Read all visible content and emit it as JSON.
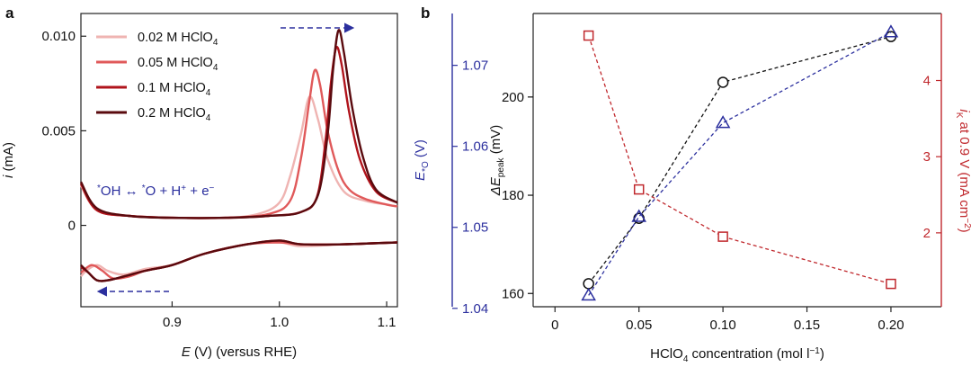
{
  "panels": [
    "a",
    "b"
  ],
  "chart_data": [
    {
      "type": "line",
      "panel": "a",
      "xlabel_italic": "E",
      "xlabel_rest": " (V) (versus RHE)",
      "ylabel_italic": "i",
      "ylabel_rest": " (mA)",
      "xlim": [
        0.815,
        1.11
      ],
      "ylim": [
        -0.0043,
        0.0112
      ],
      "xticks": [
        0.9,
        1.0,
        1.1
      ],
      "xtick_labels": [
        "0.9",
        "1.0",
        "1.1"
      ],
      "yticks": [
        0,
        0.005,
        0.01
      ],
      "ytick_labels": [
        "0",
        "0.005",
        "0.010"
      ],
      "annotation": "*OH ↔ *O + H+ + e−",
      "annotation_parts": {
        "p1": "*",
        "p2": "OH ↔ ",
        "p3": "*",
        "p4": "O + H",
        "p5": "+",
        "p6": " + e",
        "p7": "−"
      },
      "arrow_anodic": "right",
      "arrow_cathodic": "left",
      "grid": false,
      "legend_position": "top-left",
      "series": [
        {
          "name": "0.02 M HClO4",
          "name_main": "0.02 M HClO",
          "name_sub": "4",
          "color": "#efb4b2",
          "anodic_x": [
            0.815,
            0.83,
            0.86,
            0.9,
            0.95,
            0.98,
            1.0,
            1.01,
            1.02,
            1.028,
            1.036,
            1.045,
            1.06,
            1.08,
            1.1,
            1.11
          ],
          "anodic_y": [
            0.0021,
            0.0008,
            0.0005,
            0.0004,
            0.0004,
            0.0006,
            0.0012,
            0.0026,
            0.0048,
            0.0068,
            0.0056,
            0.0035,
            0.0018,
            0.0013,
            0.0011,
            0.001
          ],
          "cathodic_x": [
            1.11,
            1.06,
            1.02,
            1.0,
            0.97,
            0.93,
            0.9,
            0.875,
            0.855,
            0.84,
            0.83,
            0.82,
            0.815
          ],
          "cathodic_y": [
            -0.0009,
            -0.001,
            -0.0011,
            -0.0009,
            -0.001,
            -0.0015,
            -0.0021,
            -0.0023,
            -0.0026,
            -0.0024,
            -0.0021,
            -0.0024,
            -0.0027
          ]
        },
        {
          "name": "0.05 M HClO4",
          "name_main": "0.05 M HClO",
          "name_sub": "4",
          "color": "#e0595a",
          "anodic_x": [
            0.815,
            0.83,
            0.86,
            0.9,
            0.95,
            0.99,
            1.01,
            1.02,
            1.028,
            1.033,
            1.038,
            1.045,
            1.055,
            1.065,
            1.08,
            1.1,
            1.11
          ],
          "anodic_y": [
            0.0022,
            0.0008,
            0.0005,
            0.0004,
            0.0004,
            0.0006,
            0.0013,
            0.0035,
            0.0066,
            0.0082,
            0.0074,
            0.005,
            0.0029,
            0.0019,
            0.0014,
            0.0011,
            0.001
          ],
          "cathodic_x": [
            1.11,
            1.06,
            1.02,
            1.0,
            0.97,
            0.93,
            0.9,
            0.875,
            0.86,
            0.845,
            0.835,
            0.825,
            0.815
          ],
          "cathodic_y": [
            -0.0009,
            -0.001,
            -0.001,
            -0.0009,
            -0.001,
            -0.0015,
            -0.0021,
            -0.0024,
            -0.0027,
            -0.0028,
            -0.0024,
            -0.0021,
            -0.0025
          ]
        },
        {
          "name": "0.1 M HClO4",
          "name_main": "0.1 M HClO",
          "name_sub": "4",
          "color": "#b0141c",
          "anodic_x": [
            0.815,
            0.83,
            0.86,
            0.9,
            0.95,
            0.99,
            1.02,
            1.035,
            1.043,
            1.048,
            1.053,
            1.058,
            1.065,
            1.075,
            1.09,
            1.11
          ],
          "anodic_y": [
            0.0022,
            0.0008,
            0.0005,
            0.0004,
            0.0004,
            0.0005,
            0.0007,
            0.0015,
            0.0045,
            0.0075,
            0.0094,
            0.0085,
            0.006,
            0.0035,
            0.0018,
            0.0012
          ],
          "cathodic_x": [
            1.11,
            1.06,
            1.02,
            1.0,
            0.97,
            0.93,
            0.9,
            0.875,
            0.855,
            0.84,
            0.83,
            0.822,
            0.815
          ],
          "cathodic_y": [
            -0.0009,
            -0.001,
            -0.001,
            -0.0008,
            -0.001,
            -0.0015,
            -0.0021,
            -0.0024,
            -0.0027,
            -0.0029,
            -0.0029,
            -0.0025,
            -0.0022
          ]
        },
        {
          "name": "0.2 M HClO4",
          "name_main": "0.2 M HClO",
          "name_sub": "4",
          "color": "#5a0a0e",
          "anodic_x": [
            0.815,
            0.83,
            0.86,
            0.9,
            0.95,
            0.99,
            1.02,
            1.036,
            1.045,
            1.05,
            1.055,
            1.06,
            1.068,
            1.078,
            1.09,
            1.11
          ],
          "anodic_y": [
            0.0023,
            0.0009,
            0.0005,
            0.0004,
            0.0004,
            0.0005,
            0.0007,
            0.0016,
            0.0048,
            0.0082,
            0.0103,
            0.0092,
            0.0062,
            0.0036,
            0.0019,
            0.0012
          ],
          "cathodic_x": [
            1.11,
            1.06,
            1.02,
            1.0,
            0.97,
            0.93,
            0.9,
            0.875,
            0.855,
            0.84,
            0.83,
            0.822,
            0.815
          ],
          "cathodic_y": [
            -0.0009,
            -0.001,
            -0.001,
            -0.0008,
            -0.001,
            -0.0015,
            -0.0021,
            -0.0024,
            -0.0027,
            -0.0029,
            -0.0029,
            -0.0025,
            -0.0021
          ]
        }
      ]
    },
    {
      "type": "scatter",
      "panel": "b",
      "xlabel_main": "HClO",
      "xlabel_sub": "4",
      "xlabel_rest": " concentration (mol l",
      "xlabel_sup": "−1",
      "xlabel_end": ")",
      "xlim": [
        -0.013,
        0.23
      ],
      "xticks": [
        0,
        0.05,
        0.1,
        0.15,
        0.2
      ],
      "xtick_labels": [
        "0",
        "0.05",
        "0.10",
        "0.15",
        "0.20"
      ],
      "grid": false,
      "axes": {
        "y_left": {
          "label_main": "ΔE",
          "label_sub": "peak",
          "label_rest": " (mV)",
          "lim": [
            157.3,
            217
          ],
          "ticks": [
            160,
            180,
            200
          ],
          "tick_labels": [
            "160",
            "180",
            "200"
          ],
          "color": "#111111"
        },
        "y_mid": {
          "label_main": "E",
          "label_sub": "*O",
          "label_rest": " (V)",
          "lim": [
            1.0402,
            1.0764
          ],
          "ticks": [
            1.04,
            1.05,
            1.06,
            1.07
          ],
          "tick_labels": [
            "1.04",
            "1.05",
            "1.06",
            "1.07"
          ],
          "color": "#2b2f9e"
        },
        "y_right": {
          "label_main": "i",
          "label_sub": "K",
          "label_rest": " at 0.9 V (mA cm",
          "label_sup": "−2",
          "label_end": ")",
          "lim": [
            1.03,
            4.88
          ],
          "ticks": [
            2,
            3,
            4
          ],
          "tick_labels": [
            "2",
            "3",
            "4"
          ],
          "color": "#c0282d"
        }
      },
      "series": [
        {
          "marker": "circle",
          "axis": "y_left",
          "color": "#111111",
          "x": [
            0.02,
            0.05,
            0.1,
            0.2
          ],
          "y": [
            162,
            175.3,
            203,
            212.3
          ]
        },
        {
          "marker": "triangle",
          "axis": "y_mid",
          "color": "#2b2f9e",
          "x": [
            0.02,
            0.05,
            0.1,
            0.2
          ],
          "y": [
            1.0416,
            1.0513,
            1.0629,
            1.0741
          ]
        },
        {
          "marker": "square",
          "axis": "y_right",
          "color": "#c0282d",
          "x": [
            0.02,
            0.05,
            0.1,
            0.2
          ],
          "y": [
            4.59,
            2.57,
            1.95,
            1.33
          ]
        }
      ]
    }
  ]
}
